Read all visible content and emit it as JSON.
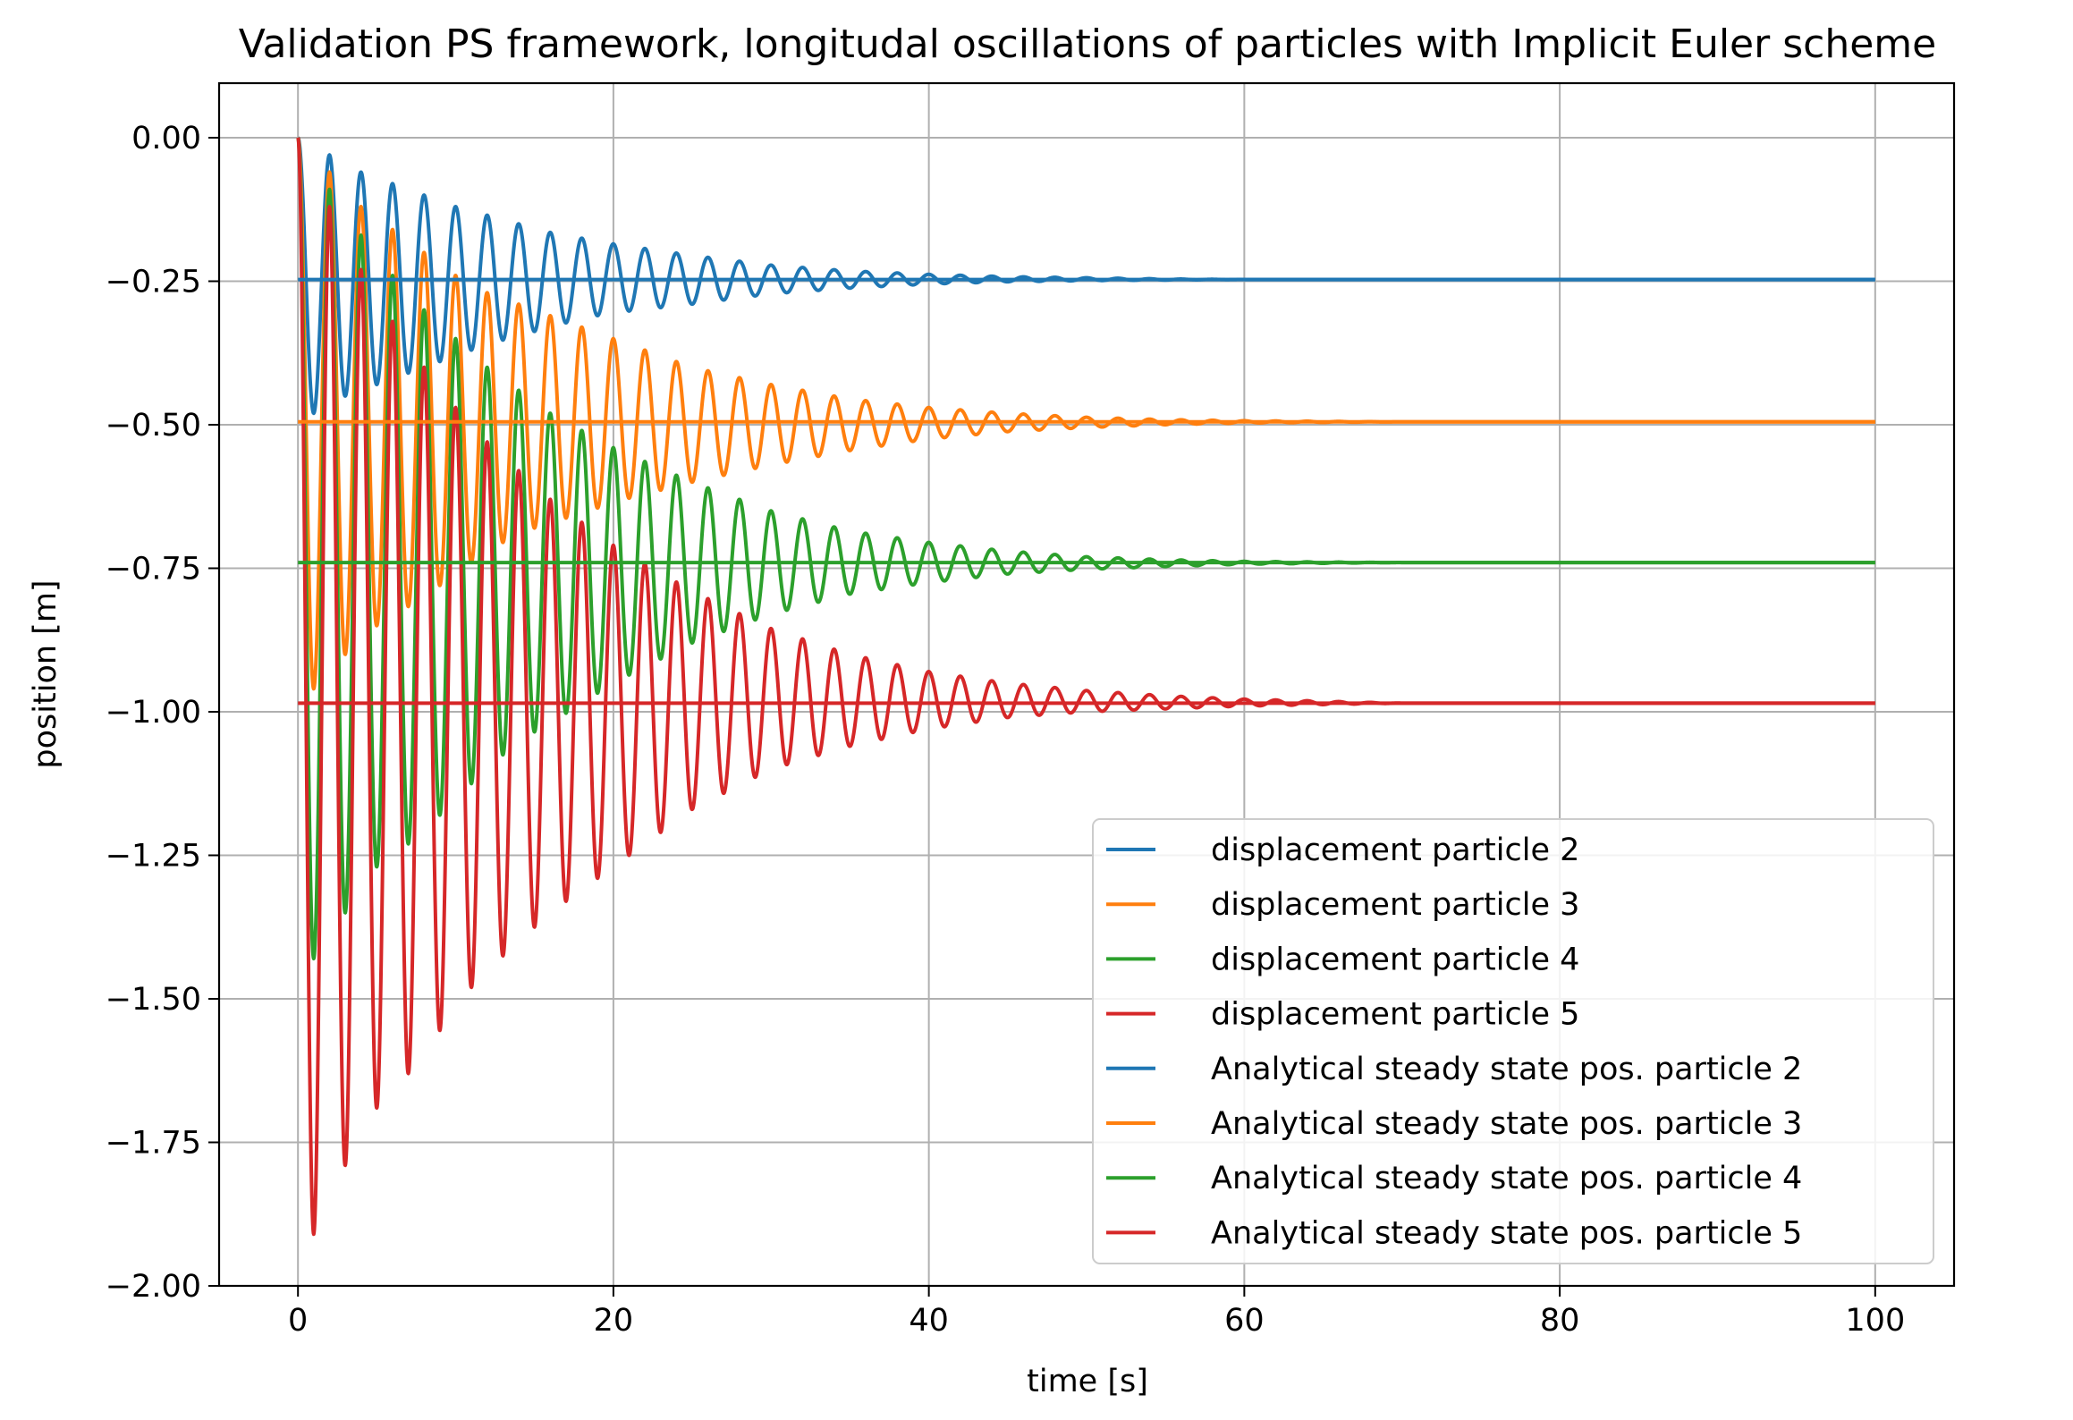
{
  "chart_data": {
    "type": "line",
    "title": "Validation PS framework, longitudal oscillations of particles with Implicit Euler scheme",
    "xlabel": "time [s]",
    "ylabel": "position [m]",
    "xlim": [
      -5,
      105
    ],
    "ylim": [
      -2.0,
      0.095
    ],
    "x_ticks": [
      0,
      20,
      40,
      60,
      80,
      100
    ],
    "x_tick_labels": [
      "0",
      "20",
      "40",
      "60",
      "80",
      "100"
    ],
    "y_ticks": [
      0.0,
      -0.25,
      -0.5,
      -0.75,
      -1.0,
      -1.25,
      -1.5,
      -1.75,
      -2.0
    ],
    "y_tick_labels": [
      "0.00",
      "−0.25",
      "−0.50",
      "−0.75",
      "−1.00",
      "−1.25",
      "−1.50",
      "−1.75",
      "−2.00"
    ],
    "grid": true,
    "legend_position": "lower-right",
    "colors": {
      "blue": "#1f77b4",
      "orange": "#ff7f0e",
      "green": "#2ca02c",
      "red": "#d62728"
    },
    "series": [
      {
        "name": "displacement particle 2",
        "color": "#1f77b4",
        "kind": "oscillation",
        "steady_state": -0.247,
        "period": 2.0,
        "extrema_t": [
          1,
          2,
          3,
          4,
          5,
          6,
          8,
          10,
          12,
          14,
          16,
          18,
          20,
          25,
          30,
          35,
          40,
          45,
          50,
          55,
          60,
          70
        ],
        "upper_envelope": [
          null,
          -0.03,
          null,
          -0.06,
          null,
          -0.08,
          -0.1,
          -0.12,
          -0.135,
          -0.15,
          -0.165,
          -0.175,
          -0.185,
          -0.205,
          -0.222,
          -0.232,
          -0.238,
          -0.242,
          -0.244,
          -0.246,
          -0.247,
          -0.247
        ],
        "lower_envelope": [
          -0.48,
          null,
          -0.45,
          null,
          -0.43,
          null,
          -0.4,
          -0.38,
          -0.36,
          -0.345,
          -0.33,
          -0.315,
          -0.305,
          -0.29,
          -0.272,
          -0.262,
          -0.255,
          -0.251,
          -0.249,
          -0.248,
          -0.247,
          -0.247
        ]
      },
      {
        "name": "displacement particle 3",
        "color": "#ff7f0e",
        "kind": "oscillation",
        "steady_state": -0.495,
        "period": 2.0,
        "extrema_t": [
          1,
          2,
          3,
          4,
          5,
          6,
          8,
          10,
          12,
          14,
          16,
          18,
          20,
          25,
          30,
          35,
          40,
          45,
          50,
          55,
          60,
          70
        ],
        "upper_envelope": [
          null,
          -0.06,
          null,
          -0.12,
          null,
          -0.16,
          -0.2,
          -0.24,
          -0.27,
          -0.29,
          -0.31,
          -0.33,
          -0.35,
          -0.4,
          -0.43,
          -0.455,
          -0.47,
          -0.48,
          -0.487,
          -0.491,
          -0.493,
          -0.495
        ],
        "lower_envelope": [
          -0.96,
          null,
          -0.9,
          null,
          -0.85,
          null,
          -0.8,
          -0.76,
          -0.72,
          -0.69,
          -0.67,
          -0.655,
          -0.635,
          -0.6,
          -0.57,
          -0.545,
          -0.525,
          -0.512,
          -0.505,
          -0.5,
          -0.497,
          -0.495
        ]
      },
      {
        "name": "displacement particle 4",
        "color": "#2ca02c",
        "kind": "oscillation",
        "steady_state": -0.74,
        "period": 2.0,
        "extrema_t": [
          1,
          2,
          3,
          4,
          5,
          6,
          8,
          10,
          12,
          14,
          16,
          18,
          20,
          25,
          30,
          35,
          40,
          45,
          50,
          55,
          60,
          70
        ],
        "upper_envelope": [
          null,
          -0.09,
          null,
          -0.17,
          null,
          -0.24,
          -0.3,
          -0.35,
          -0.4,
          -0.44,
          -0.48,
          -0.51,
          -0.54,
          -0.6,
          -0.65,
          -0.685,
          -0.705,
          -0.72,
          -0.73,
          -0.735,
          -0.738,
          -0.74
        ],
        "lower_envelope": [
          -1.43,
          null,
          -1.35,
          null,
          -1.27,
          null,
          -1.21,
          -1.15,
          -1.1,
          -1.05,
          -1.02,
          -0.985,
          -0.95,
          -0.88,
          -0.83,
          -0.795,
          -0.775,
          -0.76,
          -0.752,
          -0.747,
          -0.743,
          -0.74
        ]
      },
      {
        "name": "displacement particle 5",
        "color": "#d62728",
        "kind": "oscillation",
        "steady_state": -0.985,
        "period": 2.0,
        "extrema_t": [
          1,
          2,
          3,
          4,
          5,
          6,
          8,
          10,
          12,
          14,
          16,
          18,
          20,
          25,
          30,
          35,
          40,
          45,
          50,
          55,
          60,
          70
        ],
        "upper_envelope": [
          null,
          -0.12,
          null,
          -0.23,
          null,
          -0.32,
          -0.4,
          -0.47,
          -0.53,
          -0.58,
          -0.63,
          -0.67,
          -0.71,
          -0.79,
          -0.855,
          -0.9,
          -0.93,
          -0.95,
          -0.963,
          -0.972,
          -0.978,
          -0.985
        ],
        "lower_envelope": [
          -1.91,
          null,
          -1.79,
          null,
          -1.69,
          null,
          -1.6,
          -1.51,
          -1.45,
          -1.4,
          -1.35,
          -1.31,
          -1.27,
          -1.17,
          -1.1,
          -1.06,
          -1.03,
          -1.01,
          -1.0,
          -0.995,
          -0.99,
          -0.985
        ]
      },
      {
        "name": "Analytical steady state pos. particle 2",
        "color": "#1f77b4",
        "kind": "steady",
        "x": [
          0,
          100
        ],
        "y": [
          -0.247,
          -0.247
        ]
      },
      {
        "name": "Analytical steady state pos. particle 3",
        "color": "#ff7f0e",
        "kind": "steady",
        "x": [
          0,
          100
        ],
        "y": [
          -0.495,
          -0.495
        ]
      },
      {
        "name": "Analytical steady state pos. particle 4",
        "color": "#2ca02c",
        "kind": "steady",
        "x": [
          0,
          100
        ],
        "y": [
          -0.74,
          -0.74
        ]
      },
      {
        "name": "Analytical steady state pos. particle 5",
        "color": "#d62728",
        "kind": "steady",
        "x": [
          0,
          100
        ],
        "y": [
          -0.985,
          -0.985
        ]
      }
    ]
  }
}
